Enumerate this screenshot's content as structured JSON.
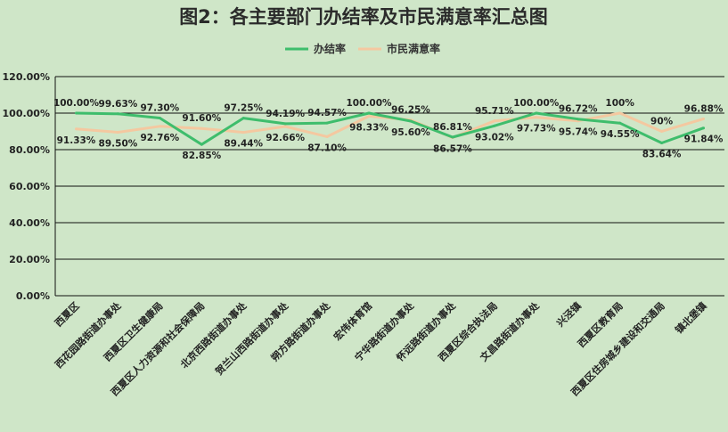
{
  "chart_data": {
    "type": "line",
    "title": "图2：各主要部门办结率及市民满意率汇总图",
    "xlabel": "",
    "ylabel": "",
    "ylim": [
      0,
      120
    ],
    "yticks": [
      "0.00%",
      "20.00%",
      "40.00%",
      "60.00%",
      "80.00%",
      "100.00%",
      "120.00%"
    ],
    "grid": true,
    "legend_position": "top-right",
    "categories": [
      "西夏区",
      "西花园路街道办事处",
      "西夏区卫生健康局",
      "西夏区人力资源和社会保障局",
      "北京西路街道办事处",
      "贺兰山西路街道办事处",
      "朔方路街道办事处",
      "宏伟体育馆",
      "宁华路街道办事处",
      "怀远路街道办事处",
      "西夏区综合执法局",
      "文昌路街道办事处",
      "兴泾镇",
      "西夏区教育局",
      "西夏区住房城乡建设和交通局",
      "镇北堡镇"
    ],
    "series": [
      {
        "name": "办结率",
        "color": "#3ebd6c",
        "values": [
          100.0,
          99.63,
          97.3,
          82.85,
          97.25,
          94.19,
          94.57,
          100.0,
          95.6,
          86.81,
          93.02,
          100.0,
          96.72,
          94.55,
          83.64,
          91.84
        ],
        "labels": [
          "100.00%",
          "99.63%",
          "97.30%",
          "82.85%",
          "97.25%",
          "94.19%",
          "94.57%",
          "100.00%",
          "95.60%",
          "86.81%",
          "93.02%",
          "100.00%",
          "96.72%",
          "94.55%",
          "83.64%",
          "91.84%"
        ]
      },
      {
        "name": "市民满意率",
        "color": "#f4c8a0",
        "values": [
          91.33,
          89.5,
          92.76,
          91.6,
          89.44,
          92.66,
          87.1,
          98.33,
          96.25,
          86.57,
          95.71,
          97.73,
          95.74,
          100.0,
          90.0,
          96.88
        ],
        "labels": [
          "91.33%",
          "89.50%",
          "92.76%",
          "91.60%",
          "89.44%",
          "92.66%",
          "87.10%",
          "98.33%",
          "96.25%",
          "86.57%",
          "95.71%",
          "97.73%",
          "95.74%",
          "100%",
          "90%",
          "96.88%"
        ]
      }
    ]
  }
}
